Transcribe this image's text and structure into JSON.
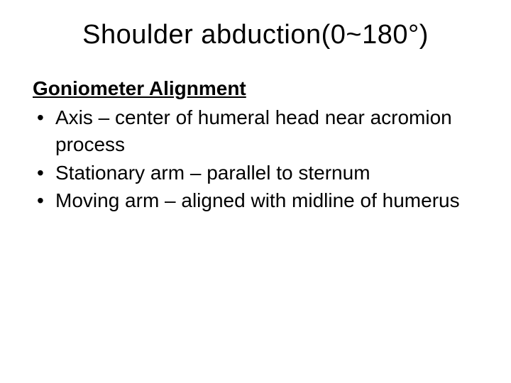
{
  "slide": {
    "title": "Shoulder abduction(0~180°)",
    "section_heading": "Goniometer Alignment",
    "bullets": [
      "Axis – center of humeral head near acromion process",
      "Stationary arm – parallel to sternum",
      "Moving arm – aligned with midline of humerus"
    ]
  },
  "styling": {
    "background_color": "#ffffff",
    "text_color": "#000000",
    "title_fontsize": 38,
    "title_weight": 400,
    "heading_fontsize": 28,
    "heading_weight": 700,
    "heading_underline": true,
    "body_fontsize": 28,
    "body_weight": 400,
    "bullet_char": "•",
    "font_family": "Arial"
  }
}
